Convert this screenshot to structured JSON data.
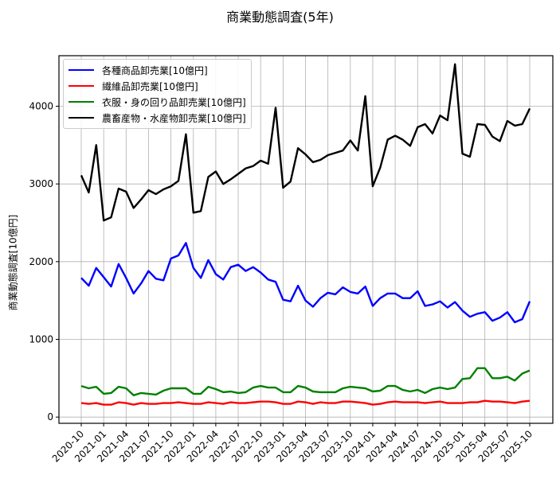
{
  "title": "商業動態調査(5年)",
  "chart_data": {
    "type": "line",
    "title": "商業動態調査(5年)",
    "xlabel": "",
    "ylabel": "商業動態調査[10億円]",
    "ylim": [
      -80,
      4650
    ],
    "yticks": [
      0,
      1000,
      2000,
      3000,
      4000
    ],
    "grid": true,
    "legend_position": "upper left",
    "xtick_labels": [
      "2020-10",
      "2021-01",
      "2021-04",
      "2021-07",
      "2021-10",
      "2022-01",
      "2022-04",
      "2022-07",
      "2022-10",
      "2023-01",
      "2023-04",
      "2023-07",
      "2023-10",
      "2024-01",
      "2024-04",
      "2024-07",
      "2024-10",
      "2025-01",
      "2025-04",
      "2025-07",
      "2025-10"
    ],
    "x_start": "2020-10",
    "x_end": "2025-10",
    "series": [
      {
        "name": "各種商品卸売業[10億円]",
        "color": "#0000ff",
        "values": [
          1790,
          1690,
          1920,
          1800,
          1680,
          1970,
          1790,
          1590,
          1720,
          1880,
          1780,
          1760,
          2040,
          2080,
          2240,
          1920,
          1790,
          2020,
          1840,
          1770,
          1930,
          1960,
          1880,
          1930,
          1860,
          1770,
          1740,
          1510,
          1490,
          1690,
          1500,
          1420,
          1530,
          1600,
          1580,
          1670,
          1610,
          1590,
          1680,
          1430,
          1530,
          1590,
          1590,
          1530,
          1530,
          1620,
          1430,
          1450,
          1490,
          1410,
          1480,
          1370,
          1290,
          1330,
          1350,
          1240,
          1280,
          1350,
          1220,
          1260,
          1490
        ]
      },
      {
        "name": "繊維品卸売業[10億円]",
        "color": "#ff0000",
        "values": [
          180,
          170,
          180,
          160,
          160,
          190,
          180,
          160,
          180,
          170,
          170,
          180,
          180,
          190,
          180,
          170,
          170,
          190,
          180,
          170,
          190,
          180,
          180,
          190,
          200,
          200,
          190,
          170,
          170,
          200,
          190,
          170,
          190,
          180,
          180,
          200,
          200,
          190,
          180,
          160,
          170,
          190,
          200,
          190,
          190,
          190,
          180,
          190,
          200,
          180,
          180,
          180,
          190,
          190,
          210,
          200,
          200,
          190,
          180,
          200,
          210
        ]
      },
      {
        "name": "衣服・身の回り品卸売業[10億円]",
        "color": "#008000",
        "values": [
          400,
          370,
          390,
          300,
          310,
          390,
          370,
          280,
          310,
          300,
          290,
          340,
          370,
          370,
          370,
          300,
          300,
          390,
          360,
          320,
          330,
          310,
          320,
          380,
          400,
          380,
          380,
          320,
          320,
          400,
          380,
          330,
          320,
          320,
          320,
          370,
          390,
          380,
          370,
          330,
          340,
          400,
          400,
          350,
          330,
          350,
          310,
          360,
          380,
          360,
          380,
          490,
          500,
          630,
          630,
          500,
          500,
          520,
          470,
          560,
          600
        ]
      },
      {
        "name": "農畜産物・水産物卸売業[10億円]",
        "color": "#000000",
        "values": [
          3110,
          2890,
          3500,
          2530,
          2570,
          2940,
          2900,
          2690,
          2800,
          2920,
          2870,
          2930,
          2970,
          3040,
          3640,
          2630,
          2650,
          3090,
          3160,
          3000,
          3060,
          3130,
          3200,
          3230,
          3300,
          3260,
          3980,
          2950,
          3030,
          3460,
          3380,
          3280,
          3310,
          3370,
          3400,
          3430,
          3560,
          3430,
          4130,
          2970,
          3210,
          3570,
          3620,
          3570,
          3490,
          3730,
          3770,
          3650,
          3880,
          3820,
          4540,
          3390,
          3350,
          3770,
          3760,
          3610,
          3550,
          3810,
          3750,
          3770,
          3970
        ]
      }
    ]
  }
}
